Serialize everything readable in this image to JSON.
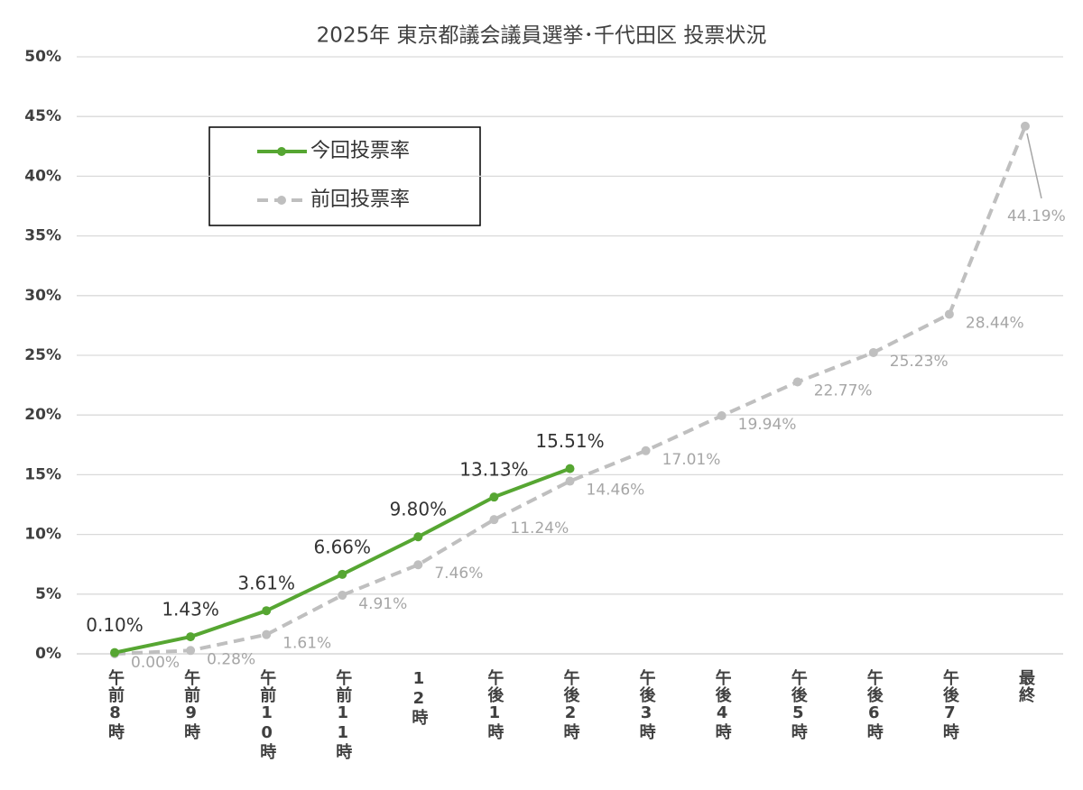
{
  "chart_data": {
    "type": "line",
    "title": "2025年 東京都議会議員選挙･千代田区 投票状況",
    "categories": [
      "午前8時",
      "午前9時",
      "午前10時",
      "午前11時",
      "12時",
      "午後1時",
      "午後2時",
      "午後3時",
      "午後4時",
      "午後5時",
      "午後6時",
      "午後7時",
      "最終"
    ],
    "series": [
      {
        "name": "今回投票率",
        "color": "#56a632",
        "dashed": false,
        "values": [
          0.1,
          1.43,
          3.61,
          6.66,
          9.8,
          13.13,
          15.51,
          null,
          null,
          null,
          null,
          null,
          null
        ],
        "value_labels": [
          "0.10%",
          "1.43%",
          "3.61%",
          "6.66%",
          "9.80%",
          "13.13%",
          "15.51%",
          null,
          null,
          null,
          null,
          null,
          null
        ]
      },
      {
        "name": "前回投票率",
        "color": "#bfbfbf",
        "dashed": true,
        "values": [
          0.0,
          0.28,
          1.61,
          4.91,
          7.46,
          11.24,
          14.46,
          17.01,
          19.94,
          22.77,
          25.23,
          28.44,
          44.19
        ],
        "value_labels": [
          "0.00%",
          "0.28%",
          "1.61%",
          "4.91%",
          "7.46%",
          "11.24%",
          "14.46%",
          "17.01%",
          "19.94%",
          "22.77%",
          "25.23%",
          "28.44%",
          "44.19%"
        ]
      }
    ],
    "ylim": [
      0,
      50
    ],
    "yticks": [
      {
        "value": 0,
        "label": "0%"
      },
      {
        "value": 5,
        "label": "5%"
      },
      {
        "value": 10,
        "label": "10%"
      },
      {
        "value": 15,
        "label": "15%"
      },
      {
        "value": 20,
        "label": "20%"
      },
      {
        "value": 25,
        "label": "25%"
      },
      {
        "value": 30,
        "label": "30%"
      },
      {
        "value": 35,
        "label": "35%"
      },
      {
        "value": 40,
        "label": "40%"
      },
      {
        "value": 45,
        "label": "45%"
      },
      {
        "value": 50,
        "label": "50%"
      }
    ],
    "grid": true
  }
}
